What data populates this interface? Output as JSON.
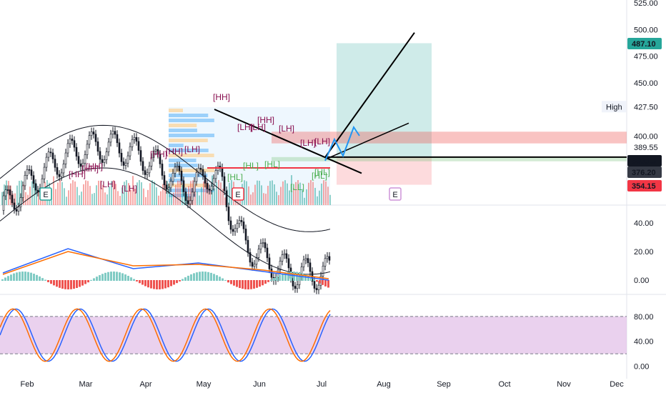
{
  "chart_data": [
    {
      "type": "candlestick",
      "panel": "price",
      "price_axis_ticks": [
        "525.00",
        "500.00",
        "475.00",
        "450.00",
        "427.50",
        "400.00"
      ],
      "time_axis": [
        "Feb",
        "Mar",
        "Apr",
        "May",
        "Jun",
        "Jul",
        "Aug",
        "Sep",
        "Oct",
        "Nov",
        "Dec"
      ],
      "x": [
        "Feb",
        "Mar",
        "Apr",
        "May",
        "Jun",
        "Jul"
      ],
      "close_approx": [
        330,
        345,
        365,
        405,
        385,
        378
      ],
      "high_approx": [
        340,
        350,
        372,
        430,
        400,
        390
      ],
      "low_approx": [
        320,
        330,
        355,
        345,
        355,
        360
      ],
      "price_labels": [
        {
          "text": "487.10",
          "color": "#26a69a"
        },
        {
          "text": "389.55",
          "color": "#ffffff"
        },
        {
          "text": "380.15",
          "color": "#131722"
        },
        {
          "text": "376.20",
          "color": "#363a45"
        },
        {
          "text": "354.15",
          "color": "#f23645"
        }
      ],
      "high_marker": {
        "label": "High",
        "value": "427.50"
      },
      "pattern_labels": [
        "[HH]",
        "[HH]",
        "[HH]",
        "[LH]",
        "[LH]",
        "[HH]",
        "[HH]",
        "[LH]",
        "[HL]",
        "[HH]",
        "[LH]",
        "[LH]",
        "[HH]",
        "[LH]",
        "[HL]",
        "[HL]",
        "[LH]",
        "[HL]",
        "[LL]",
        "[HL]",
        "[LH]"
      ],
      "event_markers": [
        "E",
        "E",
        "E"
      ],
      "trade_box": {
        "entry": 380.15,
        "target": 487.1,
        "stop": 354.15
      },
      "zones": [
        {
          "name": "resistance",
          "from": 393,
          "to": 404,
          "color": "#ef5350"
        },
        {
          "name": "support",
          "from": 376.2,
          "to": 380.15,
          "color": "#81c784"
        }
      ]
    },
    {
      "type": "line",
      "panel": "macd",
      "y_ticks": [
        "40.00",
        "20.00",
        "0.00"
      ],
      "ylim": [
        -5,
        45
      ],
      "x": [
        "Feb",
        "Mar",
        "Apr",
        "May",
        "Jun",
        "Jul"
      ],
      "series": [
        {
          "values": [
            5,
            22,
            8,
            12,
            6,
            0
          ],
          "color": "#2962ff"
        },
        {
          "values": [
            4,
            20,
            10,
            11,
            7,
            1
          ],
          "color": "#ff6d00"
        }
      ]
    },
    {
      "type": "line",
      "panel": "stochastic",
      "y_ticks": [
        "80.00",
        "40.00",
        "0.00"
      ],
      "bands": [
        20,
        80
      ],
      "ylim": [
        -5,
        105
      ],
      "x": [
        "Feb",
        "Mar",
        "Apr",
        "May",
        "Jun",
        "Jul"
      ],
      "series": [
        {
          "values": [
            20,
            95,
            15,
            90,
            60,
            75
          ],
          "color": "#2962ff"
        },
        {
          "values": [
            25,
            90,
            20,
            85,
            55,
            65
          ],
          "color": "#ff6d00"
        }
      ]
    }
  ],
  "colors": {
    "up": "#26a69a",
    "down": "#ef5350",
    "grid": "#f0f3fa",
    "purple_band": "#e1bee7",
    "pattern_label": "#880e4f",
    "event": "#26a69a"
  }
}
